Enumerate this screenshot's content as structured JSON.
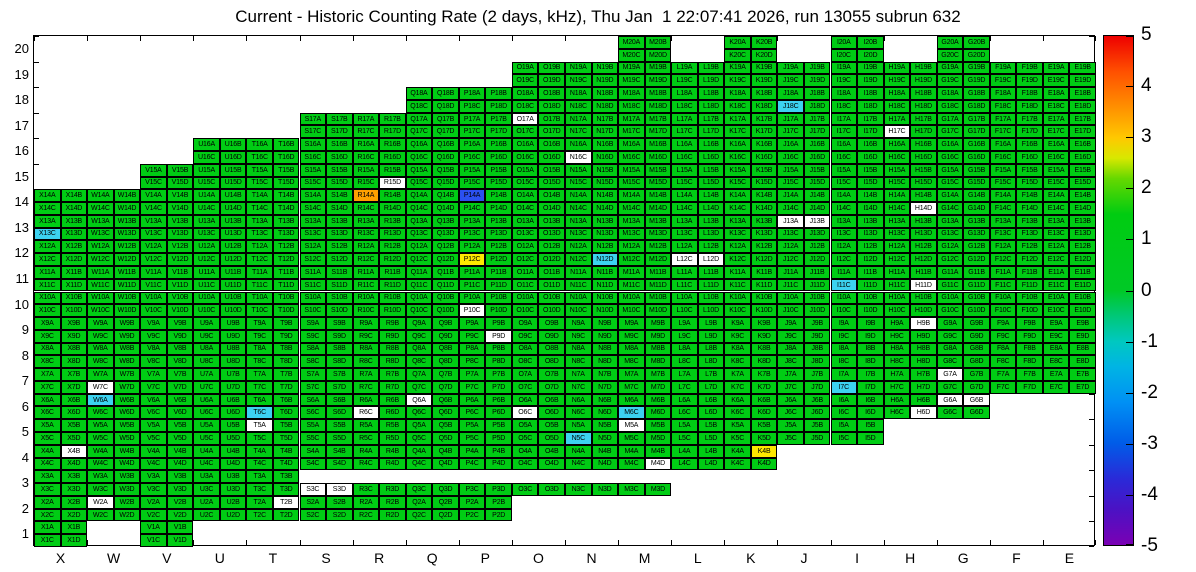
{
  "title": "Current - Historic Counting Rate (2 days, kHz), Thu Jan  1 22:07:41 2026, run 13055 subrun 632",
  "chart_data": {
    "type": "heatmap",
    "title": "Current - Historic Counting Rate (2 days, kHz), Thu Jan  1 22:07:41 2026, run 13055 subrun 632",
    "x_axis_labels": [
      "X",
      "W",
      "V",
      "U",
      "T",
      "S",
      "R",
      "Q",
      "P",
      "O",
      "N",
      "M",
      "L",
      "K",
      "J",
      "I",
      "H",
      "G",
      "F",
      "E"
    ],
    "y_axis_labels": [
      20,
      19,
      18,
      17,
      16,
      15,
      14,
      13,
      12,
      11,
      10,
      9,
      8,
      7,
      6,
      5,
      4,
      3,
      2,
      1
    ],
    "bin_letters": [
      "A",
      "B",
      "C",
      "D"
    ],
    "bin_layout": "each cell = column+row with 4 sub-bins: A top-left, B top-right, C bottom-left, D bottom-right; label text = column+row+letter",
    "column_row_spans": {
      "X": [
        1,
        14
      ],
      "W": [
        2,
        14
      ],
      "V": [
        1,
        15
      ],
      "U": [
        2,
        16
      ],
      "T": [
        2,
        16
      ],
      "S": [
        2,
        17
      ],
      "R": [
        2,
        17
      ],
      "Q": [
        2,
        18
      ],
      "P": [
        2,
        18
      ],
      "O": [
        3,
        19
      ],
      "N": [
        3,
        19
      ],
      "M": [
        3,
        20
      ],
      "L": [
        4,
        19
      ],
      "K": [
        4,
        20
      ],
      "J": [
        5,
        19
      ],
      "I": [
        5,
        20
      ],
      "H": [
        6,
        19
      ],
      "G": [
        6,
        20
      ],
      "F": [
        7,
        19
      ],
      "E": [
        7,
        19
      ]
    },
    "hidden_bins": [
      "S3A",
      "S3B",
      "R3A",
      "R3B",
      "Q3A",
      "Q3B",
      "P3A",
      "P3B",
      "O3A",
      "O3B",
      "N3A",
      "N3B",
      "M3A",
      "M3B"
    ],
    "default_color": "#00cc14",
    "value_colors": {
      "nominal_green": "#00cc14",
      "out_of_range_white": "#ffffff",
      "low_cyan": "#3cd2f0",
      "high_yellow": "#ffe800",
      "high_orange": "#ffa000",
      "very_low_blue": "#2b50f0"
    },
    "special_bins": {
      "J18C": "#3cd2f0",
      "O17A": "#ffffff",
      "H17C": "#ffffff",
      "N16C": "#ffffff",
      "R15D": "#ffffff",
      "P14A": "#2b50f0",
      "R14A": "#ffa000",
      "H14D": "#ffffff",
      "X13C": "#3cd2f0",
      "J13A": "#ffffff",
      "J13B": "#ffffff",
      "P12C": "#ffe800",
      "N12D": "#3cd2f0",
      "L12C": "#ffffff",
      "L12D": "#ffffff",
      "I11C": "#3cd2f0",
      "H11D": "#ffffff",
      "P10C": "#ffffff",
      "P9D": "#ffffff",
      "H9B": "#ffffff",
      "W7C": "#ffffff",
      "I7C": "#3cd2f0",
      "G7A": "#ffffff",
      "W6A": "#3cd2f0",
      "T6C": "#3cd2f0",
      "R6C": "#ffffff",
      "Q6A": "#ffffff",
      "O6C": "#ffffff",
      "M6C": "#3cd2f0",
      "H6D": "#ffffff",
      "G6A": "#ffffff",
      "G6B": "#ffffff",
      "T5A": "#ffffff",
      "N5C": "#3cd2f0",
      "M5A": "#ffffff",
      "X4B": "#ffffff",
      "K4B": "#ffe800",
      "M4D": "#ffffff",
      "S3C": "#ffffff",
      "S3D": "#ffffff",
      "W2A": "#ffffff",
      "T2B": "#ffffff"
    },
    "colorbar": {
      "min": -5,
      "max": 5,
      "tick_labels": [
        "5",
        "4",
        "3",
        "2",
        "1",
        "0",
        "-1",
        "-2",
        "-3",
        "-4",
        "-5"
      ],
      "gradient_top_to_bottom": [
        "#ee0000 0%",
        "#ff5000 7%",
        "#ff9000 14%",
        "#ffc800 20%",
        "#d8e800 24%",
        "#66d800 28%",
        "#00cc11 35%",
        "#00c926 50%",
        "#00c878 55%",
        "#00c8c0 60%",
        "#00b4e4 65%",
        "#0090f4 72%",
        "#005ce8 80%",
        "#2a2ad8 87%",
        "#4b12c4 93%",
        "#7a00b4 100%"
      ]
    },
    "legend_position": "right",
    "grid": "black cell borders, white background for absent channels"
  }
}
